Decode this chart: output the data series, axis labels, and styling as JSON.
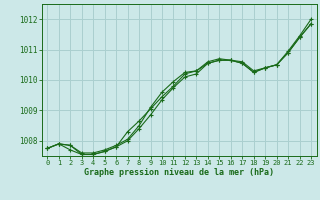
{
  "title": "Graphe pression niveau de la mer (hPa)",
  "bg_color": "#cce8e8",
  "grid_color": "#aacfcf",
  "line_color": "#1a6b1a",
  "xlim": [
    -0.5,
    23.5
  ],
  "ylim": [
    1007.5,
    1012.5
  ],
  "yticks": [
    1008,
    1009,
    1010,
    1011,
    1012
  ],
  "xticks": [
    0,
    1,
    2,
    3,
    4,
    5,
    6,
    7,
    8,
    9,
    10,
    11,
    12,
    13,
    14,
    15,
    16,
    17,
    18,
    19,
    20,
    21,
    22,
    23
  ],
  "series1_x": [
    0,
    1,
    2,
    3,
    4,
    5,
    6,
    7,
    8,
    9,
    10,
    11,
    12,
    13,
    14,
    15,
    16,
    17,
    18,
    19,
    20,
    21,
    22,
    23
  ],
  "series1_y": [
    1007.75,
    1007.9,
    1007.85,
    1007.6,
    1007.6,
    1007.7,
    1007.85,
    1008.05,
    1008.5,
    1009.1,
    1009.6,
    1009.95,
    1010.25,
    1010.3,
    1010.55,
    1010.65,
    1010.65,
    1010.6,
    1010.3,
    1010.4,
    1010.5,
    1010.95,
    1011.45,
    1012.0
  ],
  "series2_x": [
    0,
    1,
    2,
    3,
    4,
    5,
    6,
    7,
    8,
    9,
    10,
    11,
    12,
    13,
    14,
    15,
    16,
    17,
    18,
    19,
    20,
    21,
    22,
    23
  ],
  "series2_y": [
    1007.75,
    1007.9,
    1007.85,
    1007.55,
    1007.55,
    1007.65,
    1007.8,
    1008.3,
    1008.65,
    1009.05,
    1009.45,
    1009.8,
    1010.2,
    1010.3,
    1010.6,
    1010.7,
    1010.65,
    1010.55,
    1010.25,
    1010.4,
    1010.5,
    1010.9,
    1011.4,
    1011.85
  ],
  "series3_x": [
    0,
    1,
    2,
    3,
    4,
    5,
    6,
    7,
    8,
    9,
    10,
    11,
    12,
    13,
    14,
    15,
    16,
    17,
    18,
    19,
    20,
    21,
    22,
    23
  ],
  "series3_y": [
    1007.75,
    1007.9,
    1007.7,
    1007.55,
    1007.55,
    1007.65,
    1007.8,
    1008.0,
    1008.4,
    1008.85,
    1009.35,
    1009.75,
    1010.1,
    1010.2,
    1010.55,
    1010.65,
    1010.65,
    1010.55,
    1010.25,
    1010.4,
    1010.5,
    1010.9,
    1011.4,
    1011.85
  ]
}
